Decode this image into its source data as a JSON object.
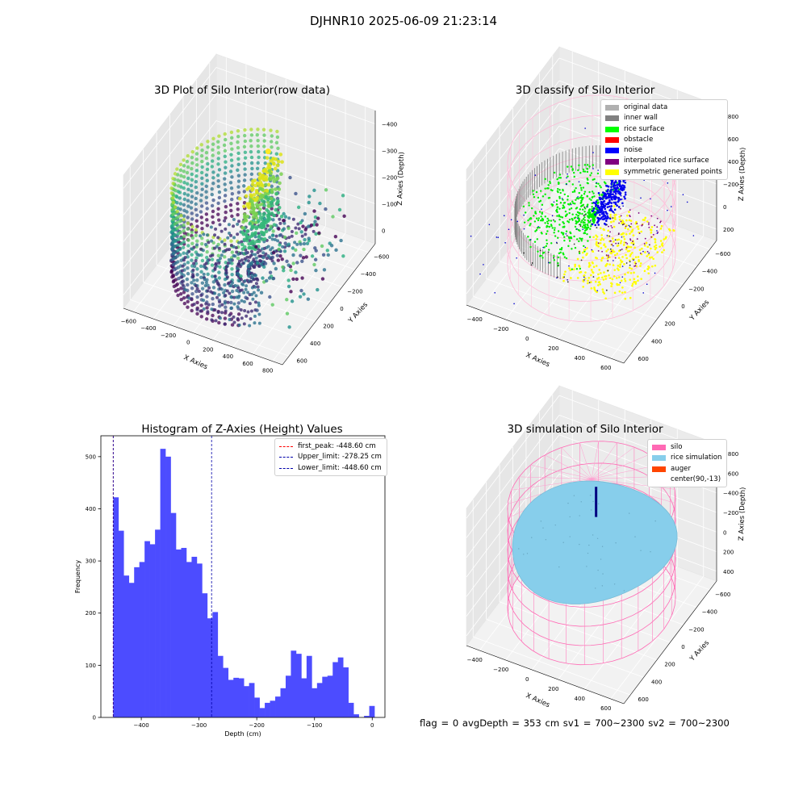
{
  "suptitle": "DJHNR10 2025-06-09 21:23:14",
  "panels": {
    "raw": {
      "title": "3D Plot of Silo Interior(row data)",
      "xlabel": "X Axies",
      "ylabel": "Y Axies",
      "zlabel": "Z Axies (Depth)",
      "xticks": [
        "−600",
        "−400",
        "−200",
        "0",
        "200",
        "400",
        "600",
        "800"
      ],
      "yticks": [
        "600",
        "400",
        "200",
        "0",
        "−200",
        "−400",
        "−600"
      ],
      "zticks": [
        "0",
        "−100",
        "−200",
        "−300",
        "−400"
      ]
    },
    "classify": {
      "title": "3D classify of Silo Interior",
      "xlabel": "X Axies",
      "ylabel": "Y Axies",
      "zlabel": "Z Axies (Depth)",
      "xticks": [
        "−400",
        "−200",
        "0",
        "200",
        "400",
        "600"
      ],
      "yticks": [
        "600",
        "400",
        "200",
        "0",
        "−200",
        "−400",
        "−600"
      ],
      "zticks": [
        "200",
        "0",
        "−200",
        "−400",
        "−600",
        "−800"
      ],
      "legend": [
        {
          "label": "original data",
          "color": "#b0b0b0"
        },
        {
          "label": "inner wall",
          "color": "#808080"
        },
        {
          "label": "rice surface",
          "color": "#00ff00"
        },
        {
          "label": "obstacle",
          "color": "#ff0000"
        },
        {
          "label": "noise",
          "color": "#0000ff"
        },
        {
          "label": "interpolated rice surface",
          "color": "#800080"
        },
        {
          "label": "symmetric generated points",
          "color": "#ffff00"
        }
      ]
    },
    "histogram": {
      "title": "Histogram of Z-Axies (Height) Values",
      "xlabel": "Depth (cm)",
      "ylabel": "Frequency",
      "legend": [
        {
          "label": "first_peak: -448.60 cm",
          "color": "#ff0000"
        },
        {
          "label": "Upper_limit: -278.25 cm",
          "color": "#0000aa"
        },
        {
          "label": "Lower_limit: -448.60 cm",
          "color": "#0000aa"
        }
      ]
    },
    "simulation": {
      "title": "3D simulation of Silo Interior",
      "xlabel": "X Axies",
      "ylabel": "Y Axies",
      "zlabel": "Z Axies (Depth)",
      "xticks": [
        "−400",
        "−200",
        "0",
        "200",
        "400",
        "600"
      ],
      "yticks": [
        "600",
        "400",
        "200",
        "0",
        "−200",
        "−400",
        "−600"
      ],
      "zticks": [
        "400",
        "200",
        "0",
        "−200",
        "−400",
        "−600",
        "−800"
      ],
      "legend": [
        {
          "label": "silo",
          "color": "#ff69b4"
        },
        {
          "label": "rice simulation",
          "color": "#87ceeb"
        },
        {
          "label": "auger",
          "color": "#ff4500"
        },
        {
          "label": "center(90,-13)",
          "color": ""
        }
      ]
    }
  },
  "footer": "flag = 0     avgDepth = 353 cm  sv1 = 700~2300  sv2 = 700~2300",
  "colors": {
    "bar": "#4c4cff",
    "viridis_dark": "#440154",
    "viridis_mid": "#21918c",
    "viridis_light": "#fde725"
  },
  "chart_data": [
    {
      "type": "bar",
      "title": "Histogram of Z-Axies (Height) Values",
      "xlabel": "Depth (cm)",
      "ylabel": "Frequency",
      "xlim": [
        -470,
        22
      ],
      "ylim": [
        0,
        540
      ],
      "xticks": [
        -400,
        -300,
        -200,
        -100,
        0
      ],
      "yticks": [
        0,
        100,
        200,
        300,
        400,
        500
      ],
      "bin_start": -448.6,
      "bin_width": 9.05,
      "values": [
        422,
        358,
        272,
        258,
        288,
        298,
        338,
        332,
        360,
        515,
        500,
        392,
        322,
        325,
        298,
        308,
        295,
        238,
        190,
        202,
        118,
        95,
        72,
        76,
        75,
        60,
        66,
        38,
        18,
        28,
        32,
        40,
        56,
        80,
        128,
        122,
        75,
        118,
        56,
        66,
        78,
        80,
        106,
        115,
        96,
        28,
        6,
        0,
        3,
        22
      ],
      "vlines": [
        {
          "x": -448.6,
          "name": "first_peak: -448.60 cm",
          "color": "#ff0000"
        },
        {
          "x": -278.25,
          "name": "Upper_limit: -278.25 cm",
          "color": "#0000aa"
        },
        {
          "x": -448.6,
          "name": "Lower_limit: -448.60 cm",
          "color": "#0000aa"
        }
      ],
      "legend_position": "upper-right"
    }
  ]
}
